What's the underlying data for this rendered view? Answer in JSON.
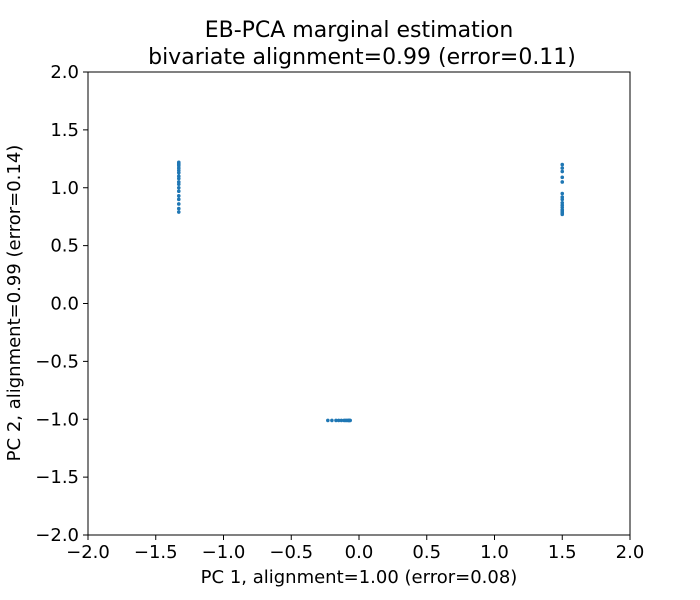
{
  "chart_data": {
    "type": "scatter",
    "title": "EB-PCA marginal estimation",
    "subtitle": "bivariate alignment=0.99 (error=0.11)",
    "xlabel": "PC 1, alignment=1.00 (error=0.08)",
    "ylabel": "PC 2, alignment=0.99 (error=0.14)",
    "xlim": [
      -2.0,
      2.0
    ],
    "ylim": [
      -2.0,
      2.0
    ],
    "xticks": [
      {
        "value": -2.0,
        "label": "−2.0"
      },
      {
        "value": -1.5,
        "label": "−1.5"
      },
      {
        "value": -1.0,
        "label": "−1.0"
      },
      {
        "value": -0.5,
        "label": "−0.5"
      },
      {
        "value": 0.0,
        "label": "0.0"
      },
      {
        "value": 0.5,
        "label": "0.5"
      },
      {
        "value": 1.0,
        "label": "1.0"
      },
      {
        "value": 1.5,
        "label": "1.5"
      },
      {
        "value": 2.0,
        "label": "2.0"
      }
    ],
    "yticks": [
      {
        "value": -2.0,
        "label": "−2.0"
      },
      {
        "value": -1.5,
        "label": "−1.5"
      },
      {
        "value": -1.0,
        "label": "−1.0"
      },
      {
        "value": -0.5,
        "label": "−0.5"
      },
      {
        "value": 0.0,
        "label": "0.0"
      },
      {
        "value": 0.5,
        "label": "0.5"
      },
      {
        "value": 1.0,
        "label": "1.0"
      },
      {
        "value": 1.5,
        "label": "1.5"
      },
      {
        "value": 2.0,
        "label": "2.0"
      }
    ],
    "grid": false,
    "color": "#1f77b4",
    "points": [
      [
        -1.33,
        1.22
      ],
      [
        -1.33,
        1.21
      ],
      [
        -1.33,
        1.2
      ],
      [
        -1.33,
        1.19
      ],
      [
        -1.33,
        1.17
      ],
      [
        -1.33,
        1.15
      ],
      [
        -1.33,
        1.13
      ],
      [
        -1.33,
        1.1
      ],
      [
        -1.33,
        1.08
      ],
      [
        -1.33,
        1.05
      ],
      [
        -1.33,
        1.03
      ],
      [
        -1.33,
        1.0
      ],
      [
        -1.33,
        0.97
      ],
      [
        -1.33,
        0.93
      ],
      [
        -1.33,
        0.9
      ],
      [
        -1.33,
        0.86
      ],
      [
        -1.33,
        0.82
      ],
      [
        -1.33,
        0.79
      ],
      [
        1.5,
        1.2
      ],
      [
        1.5,
        1.17
      ],
      [
        1.5,
        1.14
      ],
      [
        1.5,
        1.09
      ],
      [
        1.5,
        1.05
      ],
      [
        1.5,
        0.95
      ],
      [
        1.5,
        0.92
      ],
      [
        1.5,
        0.9
      ],
      [
        1.5,
        0.87
      ],
      [
        1.5,
        0.85
      ],
      [
        1.5,
        0.83
      ],
      [
        1.5,
        0.81
      ],
      [
        1.5,
        0.8
      ],
      [
        1.5,
        0.79
      ],
      [
        1.5,
        0.78
      ],
      [
        1.5,
        0.77
      ],
      [
        -0.23,
        -1.01
      ],
      [
        -0.2,
        -1.01
      ],
      [
        -0.17,
        -1.01
      ],
      [
        -0.15,
        -1.01
      ],
      [
        -0.13,
        -1.01
      ],
      [
        -0.11,
        -1.01
      ],
      [
        -0.1,
        -1.01
      ],
      [
        -0.09,
        -1.01
      ],
      [
        -0.08,
        -1.01
      ],
      [
        -0.075,
        -1.01
      ],
      [
        -0.07,
        -1.01
      ],
      [
        -0.065,
        -1.01
      ]
    ]
  }
}
